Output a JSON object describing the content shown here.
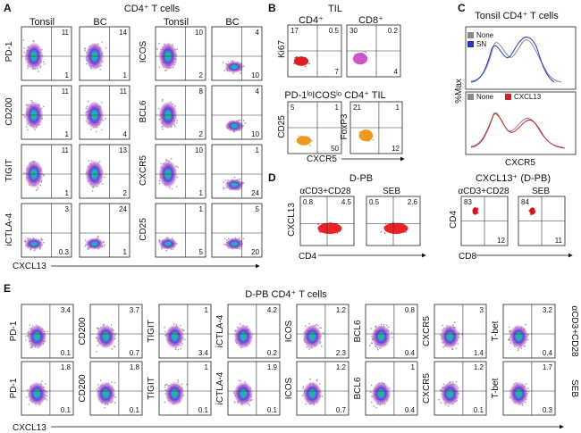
{
  "panelA": {
    "letter": "A",
    "title": "CD4⁺ T cells",
    "col_headers": [
      "Tonsil",
      "BC",
      "Tonsil",
      "BC"
    ],
    "x_axis": "CXCL13",
    "left_rows": [
      {
        "marker": "PD-1",
        "tonsil": {
          "tr": "11",
          "br": "1"
        },
        "bc": {
          "tr": "14",
          "br": "1"
        }
      },
      {
        "marker": "CD200",
        "tonsil": {
          "tr": "11",
          "br": "1"
        },
        "bc": {
          "tr": "11",
          "br": "4"
        }
      },
      {
        "marker": "TIGIT",
        "tonsil": {
          "tr": "11",
          "br": "1"
        },
        "bc": {
          "tr": "13",
          "br": "2"
        }
      },
      {
        "marker": "iCTLA-4",
        "tonsil": {
          "tr": "3",
          "br": "0.3"
        },
        "bc": {
          "tr": "24",
          "br": "1"
        }
      }
    ],
    "right_rows": [
      {
        "marker": "ICOS",
        "tonsil": {
          "tr": "10",
          "br": "2"
        },
        "bc": {
          "tr": "4",
          "br": "10"
        }
      },
      {
        "marker": "BCL6",
        "tonsil": {
          "tr": "8",
          "br": "2"
        },
        "bc": {
          "tr": "4",
          "br": "10"
        }
      },
      {
        "marker": "CXCR5",
        "tonsil": {
          "tr": "10",
          "br": "1"
        },
        "bc": {
          "tr": "1",
          "br": "24"
        }
      },
      {
        "marker": "CD25",
        "tonsil": {
          "tr": "1",
          "br": "5"
        },
        "bc": {
          "tr": "5",
          "br": "20"
        }
      }
    ]
  },
  "panelB": {
    "letter": "B",
    "title": "TIL",
    "top_headers": [
      "CD4⁺",
      "CD8⁺"
    ],
    "top_y": "Ki67",
    "cd4": {
      "tl": "17",
      "tr": "0.5",
      "br": "7"
    },
    "cd8": {
      "tl": "30",
      "tr": "0.2",
      "br": "4"
    },
    "bottom_title": "PD-1ˡᵒICOSˡᵒ CD4⁺ TIL",
    "bottom_y_left": "CD25",
    "bottom_y_right": "FoxP3",
    "cd25": {
      "tl": "5",
      "tr": "1",
      "br": "50"
    },
    "foxp3": {
      "tl": "21",
      "tr": "1",
      "br": "12"
    },
    "x_axis": "CXCR5"
  },
  "panelC": {
    "letter": "C",
    "title": "Tonsil CD4⁺ T cells",
    "legend_top": [
      {
        "label": "None",
        "color": "#8a8a8a"
      },
      {
        "label": "SN",
        "color": "#2233cc"
      }
    ],
    "legend_bottom": [
      {
        "label": "None",
        "color": "#8a8a8a"
      },
      {
        "label": "CXCL13",
        "color": "#cc2222"
      }
    ],
    "y_axis": "%Max",
    "x_axis": "CXCR5"
  },
  "panelD": {
    "letter": "D",
    "title_left": "D-PB",
    "title_right": "CXCL13⁺ (D-PB)",
    "sub_left": [
      "αCD3+CD28",
      "SEB"
    ],
    "sub_right": [
      "αCD3+CD28",
      "SEB"
    ],
    "y_left": "CXCL13",
    "x_left": "CD4",
    "y_right": "CD4",
    "x_right": "CD8",
    "plots_left": [
      {
        "tl": "0.8",
        "tr": "4.5"
      },
      {
        "tl": "0.5",
        "tr": "2.6"
      }
    ],
    "plots_right": [
      {
        "tl": "83",
        "br": "12"
      },
      {
        "tl": "84",
        "br": "11"
      }
    ]
  },
  "panelE": {
    "letter": "E",
    "title": "D-PB CD4⁺ T cells",
    "x_axis": "CXCL13",
    "markers": [
      "PD-1",
      "CD200",
      "TIGIT",
      "iCTLA-4",
      "ICOS",
      "BCL6",
      "CXCR5",
      "T-bet"
    ],
    "row_labels": [
      "αCD3+CD28",
      "SEB"
    ],
    "row1": [
      {
        "tr": "3.4",
        "br": "0.1"
      },
      {
        "tr": "3.7",
        "br": "0.7"
      },
      {
        "tr": "1",
        "br": "3.4"
      },
      {
        "tr": "4.2",
        "br": "0.2"
      },
      {
        "tr": "1.2",
        "br": "2.3"
      },
      {
        "tr": "0.8",
        "br": "0.4"
      },
      {
        "tr": "3",
        "br": "1.4"
      },
      {
        "tr": "3.2",
        "br": "0.4"
      }
    ],
    "row2": [
      {
        "tr": "1.8",
        "br": "0.1"
      },
      {
        "tr": "1.8",
        "br": "0.1"
      },
      {
        "tr": "1",
        "br": "0.1"
      },
      {
        "tr": "1.9",
        "br": "0.1"
      },
      {
        "tr": "1.2",
        "br": "0.7"
      },
      {
        "tr": "1",
        "br": "0.4"
      },
      {
        "tr": "1.2",
        "br": "0.1"
      },
      {
        "tr": "1.7",
        "br": "0.3"
      }
    ]
  }
}
